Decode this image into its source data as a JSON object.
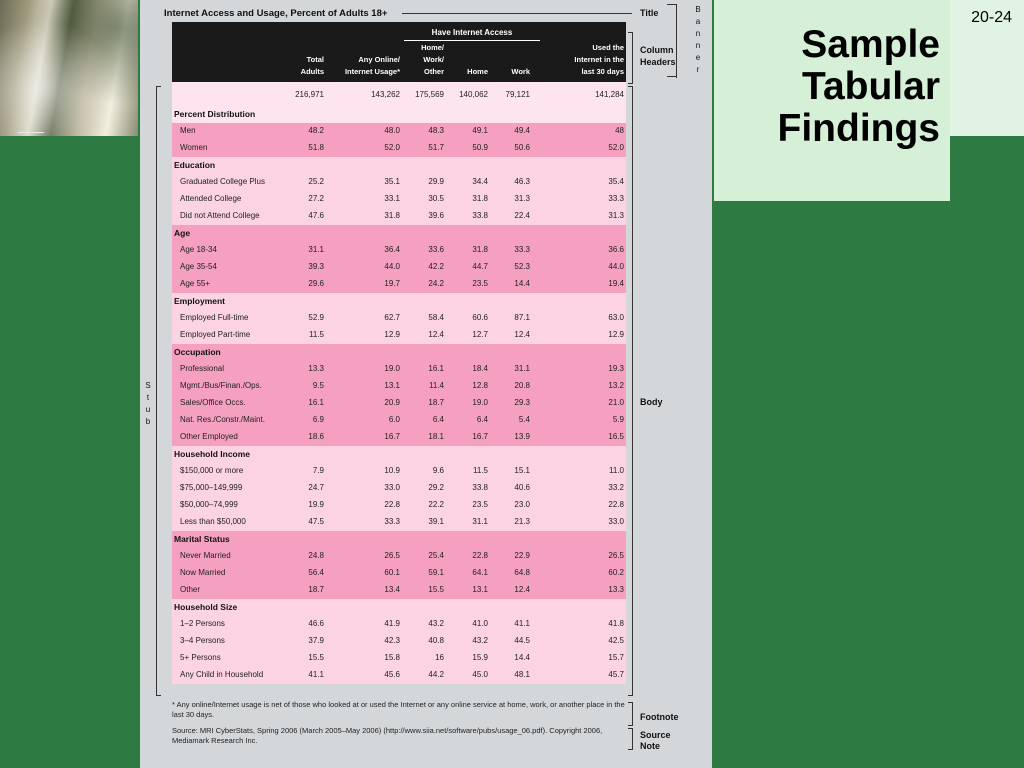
{
  "slide_number": "20-24",
  "slide_title": [
    "Sample",
    "Tabular",
    "Findings"
  ],
  "figure": {
    "title": "Internet Access and Usage, Percent of Adults 18+",
    "annotations": {
      "title": "Title",
      "banner": "Banner",
      "column_headers": [
        "Column",
        "Headers"
      ],
      "stub": "Stub",
      "body": "Body",
      "footnote": "Footnote",
      "source_note": [
        "Source",
        "Note"
      ]
    },
    "group_header": "Have Internet Access",
    "columns": [
      {
        "lines": [
          "Total",
          "Adults"
        ]
      },
      {
        "lines": [
          "Any Online/",
          "Internet Usage*"
        ]
      },
      {
        "lines": [
          "Home/",
          "Work/",
          "Other"
        ]
      },
      {
        "lines": [
          "Home"
        ]
      },
      {
        "lines": [
          "Work"
        ]
      },
      {
        "lines": [
          "Used the",
          "Internet in the",
          "last 30 days"
        ]
      }
    ],
    "totals": [
      "216,971",
      "143,262",
      "175,569",
      "140,062",
      "79,121",
      "141,284"
    ],
    "sections": [
      {
        "title": "Percent Distribution",
        "shade": "dark",
        "rows": [
          {
            "label": "Men",
            "values": [
              "48.2",
              "48.0",
              "48.3",
              "49.1",
              "49.4",
              "48"
            ]
          },
          {
            "label": "Women",
            "values": [
              "51.8",
              "52.0",
              "51.7",
              "50.9",
              "50.6",
              "52.0"
            ]
          }
        ]
      },
      {
        "title": "Education",
        "shade": "light",
        "rows": [
          {
            "label": "Graduated College Plus",
            "values": [
              "25.2",
              "35.1",
              "29.9",
              "34.4",
              "46.3",
              "35.4"
            ]
          },
          {
            "label": "Attended College",
            "values": [
              "27.2",
              "33.1",
              "30.5",
              "31.8",
              "31.3",
              "33.3"
            ]
          },
          {
            "label": "Did not Attend College",
            "values": [
              "47.6",
              "31.8",
              "39.6",
              "33.8",
              "22.4",
              "31.3"
            ]
          }
        ]
      },
      {
        "title": "Age",
        "shade": "dark",
        "rows": [
          {
            "label": "Age 18-34",
            "values": [
              "31.1",
              "36.4",
              "33.6",
              "31.8",
              "33.3",
              "36.6"
            ]
          },
          {
            "label": "Age 35-54",
            "values": [
              "39.3",
              "44.0",
              "42.2",
              "44.7",
              "52.3",
              "44.0"
            ]
          },
          {
            "label": "Age 55+",
            "values": [
              "29.6",
              "19.7",
              "24.2",
              "23.5",
              "14.4",
              "19.4"
            ]
          }
        ]
      },
      {
        "title": "Employment",
        "shade": "light",
        "rows": [
          {
            "label": "Employed Full-time",
            "values": [
              "52.9",
              "62.7",
              "58.4",
              "60.6",
              "87.1",
              "63.0"
            ]
          },
          {
            "label": "Employed Part-time",
            "values": [
              "11.5",
              "12.9",
              "12.4",
              "12.7",
              "12.4",
              "12.9"
            ]
          }
        ]
      },
      {
        "title": "Occupation",
        "shade": "dark",
        "rows": [
          {
            "label": "Professional",
            "values": [
              "13.3",
              "19.0",
              "16.1",
              "18.4",
              "31.1",
              "19.3"
            ]
          },
          {
            "label": "Mgmt./Bus/Finan./Ops.",
            "values": [
              "9.5",
              "13.1",
              "11.4",
              "12.8",
              "20.8",
              "13.2"
            ]
          },
          {
            "label": "Sales/Office Occs.",
            "values": [
              "16.1",
              "20.9",
              "18.7",
              "19.0",
              "29.3",
              "21.0"
            ]
          },
          {
            "label": "Nat. Res./Constr./Maint.",
            "values": [
              "6.9",
              "6.0",
              "6.4",
              "6.4",
              "5.4",
              "5.9"
            ]
          },
          {
            "label": "Other Employed",
            "values": [
              "18.6",
              "16.7",
              "18.1",
              "16.7",
              "13.9",
              "16.5"
            ]
          }
        ]
      },
      {
        "title": "Household Income",
        "shade": "light",
        "rows": [
          {
            "label": "$150,000 or more",
            "values": [
              "7.9",
              "10.9",
              "9.6",
              "11.5",
              "15.1",
              "11.0"
            ]
          },
          {
            "label": "$75,000–149,999",
            "values": [
              "24.7",
              "33.0",
              "29.2",
              "33.8",
              "40.6",
              "33.2"
            ]
          },
          {
            "label": "$50,000–74,999",
            "values": [
              "19.9",
              "22.8",
              "22.2",
              "23.5",
              "23.0",
              "22.8"
            ]
          },
          {
            "label": "Less than $50,000",
            "values": [
              "47.5",
              "33.3",
              "39.1",
              "31.1",
              "21.3",
              "33.0"
            ]
          }
        ]
      },
      {
        "title": "Marital Status",
        "shade": "dark",
        "rows": [
          {
            "label": "Never Married",
            "values": [
              "24.8",
              "26.5",
              "25.4",
              "22.8",
              "22.9",
              "26.5"
            ]
          },
          {
            "label": "Now Married",
            "values": [
              "56.4",
              "60.1",
              "59.1",
              "64.1",
              "64.8",
              "60.2"
            ]
          },
          {
            "label": "Other",
            "values": [
              "18.7",
              "13.4",
              "15.5",
              "13.1",
              "12.4",
              "13.3"
            ]
          }
        ]
      },
      {
        "title": "Household Size",
        "shade": "light",
        "rows": [
          {
            "label": "1–2 Persons",
            "values": [
              "46.6",
              "41.9",
              "43.2",
              "41.0",
              "41.1",
              "41.8"
            ]
          },
          {
            "label": "3–4 Persons",
            "values": [
              "37.9",
              "42.3",
              "40.8",
              "43.2",
              "44.5",
              "42.5"
            ]
          },
          {
            "label": "5+ Persons",
            "values": [
              "15.5",
              "15.8",
              "16",
              "15.9",
              "14.4",
              "15.7"
            ]
          },
          {
            "label": "Any Child in Household",
            "values": [
              "41.1",
              "45.6",
              "44.2",
              "45.0",
              "48.1",
              "45.7"
            ]
          }
        ]
      }
    ],
    "footnote": "* Any online/Internet usage is net of those who looked at or used the Internet or any online service at home, work, or another place in the last 30 days.",
    "source_note": "Source: MRI CyberStats, Spring 2006 (March 2005–May 2006) (http://www.siia.net/software/pubs/usage_06.pdf). Copyright 2006, Mediamark Research Inc."
  }
}
